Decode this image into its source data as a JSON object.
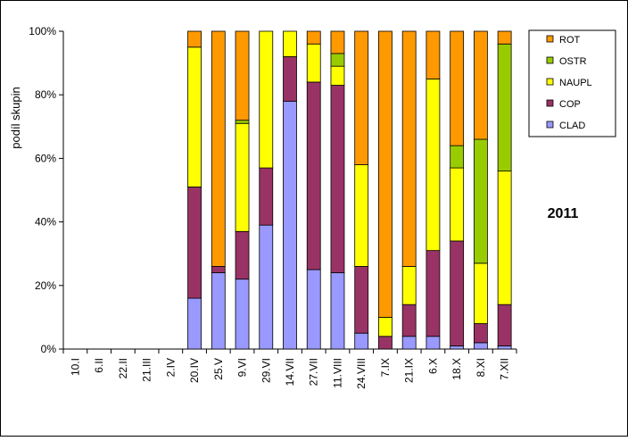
{
  "chart_data": {
    "type": "bar",
    "stacked": "percent",
    "ylabel": "podíl skupin",
    "ylim": [
      0,
      100
    ],
    "yticks": [
      "0%",
      "20%",
      "40%",
      "60%",
      "80%",
      "100%"
    ],
    "annotation": "2011",
    "legend_position": "top-right",
    "categories": [
      "10.I",
      "6.II",
      "22.II",
      "21.III",
      "2.IV",
      "20.IV",
      "25.V",
      "9.VI",
      "29.VI",
      "14.VII",
      "27.VII",
      "11.VIII",
      "24.VIII",
      "7.IX",
      "21.IX",
      "6.X",
      "18.X",
      "8.XI",
      "7.XII"
    ],
    "series": [
      {
        "name": "CLAD",
        "color": "#9999ff",
        "values": [
          0,
          0,
          0,
          0,
          0,
          16,
          24,
          22,
          39,
          78,
          25,
          24,
          5,
          0,
          4,
          4,
          1,
          2,
          1
        ]
      },
      {
        "name": "COP",
        "color": "#993366",
        "values": [
          0,
          0,
          0,
          0,
          0,
          35,
          2,
          15,
          18,
          14,
          59,
          59,
          21,
          4,
          10,
          27,
          33,
          6,
          13
        ]
      },
      {
        "name": "NAUPL",
        "color": "#ffff00",
        "values": [
          0,
          0,
          0,
          0,
          0,
          44,
          0,
          34,
          43,
          8,
          12,
          6,
          32,
          6,
          12,
          54,
          23,
          19,
          42
        ]
      },
      {
        "name": "OSTR",
        "color": "#99cc00",
        "values": [
          0,
          0,
          0,
          0,
          0,
          0,
          0,
          1,
          0,
          0,
          0,
          4,
          0,
          0,
          0,
          0,
          7,
          39,
          40
        ]
      },
      {
        "name": "ROT",
        "color": "#ff9900",
        "values": [
          0,
          0,
          0,
          0,
          0,
          5,
          74,
          28,
          0,
          0,
          4,
          7,
          42,
          90,
          74,
          15,
          36,
          34,
          4
        ]
      }
    ]
  }
}
